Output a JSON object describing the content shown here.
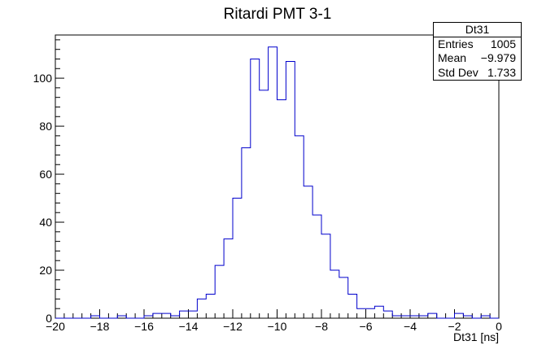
{
  "chart_data": {
    "type": "histogram",
    "title": "Ritardi PMT 3-1",
    "xlabel": "Dt31 [ns]",
    "ylabel": "",
    "xlim": [
      -20,
      0
    ],
    "ylim": [
      0,
      118
    ],
    "bin_width": 0.4,
    "x_ticks": [
      -20,
      -18,
      -16,
      -14,
      -12,
      -10,
      -8,
      -6,
      -4,
      -2,
      0
    ],
    "y_ticks": [
      0,
      20,
      40,
      60,
      80,
      100
    ],
    "line_color": "#0000cc",
    "grid": false,
    "bins": [
      {
        "x": -18.4,
        "count": 1
      },
      {
        "x": -17.2,
        "count": 1
      },
      {
        "x": -16.0,
        "count": 1
      },
      {
        "x": -15.6,
        "count": 2
      },
      {
        "x": -15.2,
        "count": 2
      },
      {
        "x": -14.8,
        "count": 1
      },
      {
        "x": -14.4,
        "count": 3
      },
      {
        "x": -14.0,
        "count": 3
      },
      {
        "x": -13.6,
        "count": 8
      },
      {
        "x": -13.2,
        "count": 10
      },
      {
        "x": -12.8,
        "count": 22
      },
      {
        "x": -12.4,
        "count": 33
      },
      {
        "x": -12.0,
        "count": 50
      },
      {
        "x": -11.6,
        "count": 71
      },
      {
        "x": -11.2,
        "count": 108
      },
      {
        "x": -10.8,
        "count": 95
      },
      {
        "x": -10.4,
        "count": 113
      },
      {
        "x": -10.0,
        "count": 91
      },
      {
        "x": -9.6,
        "count": 107
      },
      {
        "x": -9.2,
        "count": 76
      },
      {
        "x": -8.8,
        "count": 55
      },
      {
        "x": -8.4,
        "count": 43
      },
      {
        "x": -8.0,
        "count": 35
      },
      {
        "x": -7.6,
        "count": 20
      },
      {
        "x": -7.2,
        "count": 17
      },
      {
        "x": -6.8,
        "count": 10
      },
      {
        "x": -6.4,
        "count": 4
      },
      {
        "x": -6.0,
        "count": 4
      },
      {
        "x": -5.6,
        "count": 5
      },
      {
        "x": -5.2,
        "count": 3
      },
      {
        "x": -4.8,
        "count": 1
      },
      {
        "x": -4.4,
        "count": 1
      },
      {
        "x": -4.0,
        "count": 1
      },
      {
        "x": -3.6,
        "count": 1
      },
      {
        "x": -3.2,
        "count": 2
      },
      {
        "x": -2.0,
        "count": 2
      },
      {
        "x": -1.6,
        "count": 1
      },
      {
        "x": -0.8,
        "count": 1
      }
    ],
    "stats": {
      "name": "Dt31",
      "entries_label": "Entries",
      "entries_value": "1005",
      "mean_label": "Mean",
      "mean_value": "−9.979",
      "stddev_label": "Std Dev",
      "stddev_value": "1.733"
    }
  }
}
